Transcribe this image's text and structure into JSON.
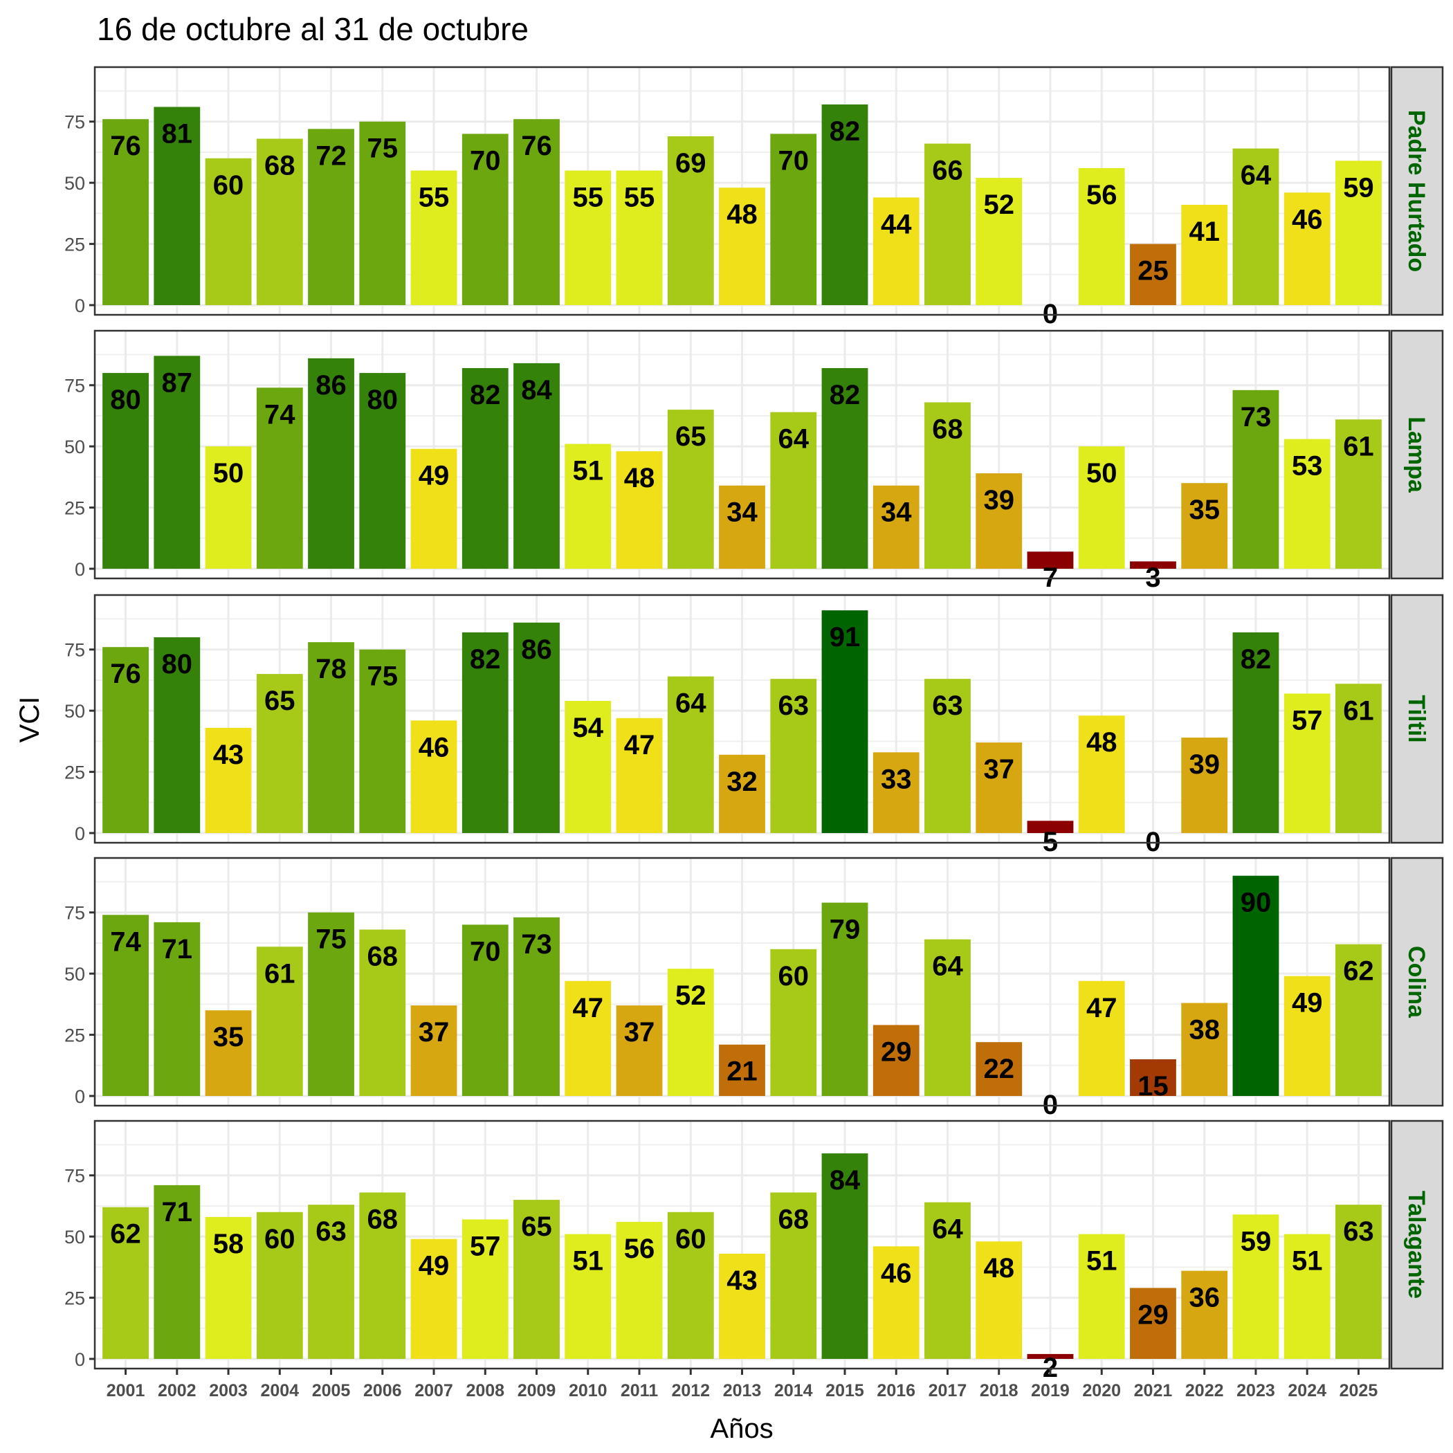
{
  "chart_data": {
    "type": "bar",
    "title": "16 de octubre al 31 de octubre",
    "xlabel": "Años",
    "ylabel": "VCI",
    "ylim": [
      0,
      95
    ],
    "yticks": [
      0,
      25,
      50,
      75
    ],
    "grid": true,
    "facet": "rows",
    "categories": [
      "2001",
      "2002",
      "2003",
      "2004",
      "2005",
      "2006",
      "2007",
      "2008",
      "2009",
      "2010",
      "2011",
      "2012",
      "2013",
      "2014",
      "2015",
      "2016",
      "2017",
      "2018",
      "2019",
      "2020",
      "2021",
      "2022",
      "2023",
      "2024",
      "2025"
    ],
    "series": [
      {
        "name": "Padre Hurtado",
        "values": [
          76,
          81,
          60,
          68,
          72,
          75,
          55,
          70,
          76,
          55,
          55,
          69,
          48,
          70,
          82,
          44,
          66,
          52,
          0,
          56,
          25,
          41,
          64,
          46,
          59
        ]
      },
      {
        "name": "Lampa",
        "values": [
          80,
          87,
          50,
          74,
          86,
          80,
          49,
          82,
          84,
          51,
          48,
          65,
          34,
          64,
          82,
          34,
          68,
          39,
          7,
          50,
          3,
          35,
          73,
          53,
          61
        ]
      },
      {
        "name": "Tiltil",
        "values": [
          76,
          80,
          43,
          65,
          78,
          75,
          46,
          82,
          86,
          54,
          47,
          64,
          32,
          63,
          91,
          33,
          63,
          37,
          5,
          48,
          0,
          39,
          82,
          57,
          61
        ]
      },
      {
        "name": "Colina",
        "values": [
          74,
          71,
          35,
          61,
          75,
          68,
          37,
          70,
          73,
          47,
          37,
          52,
          21,
          60,
          79,
          29,
          64,
          22,
          0,
          47,
          15,
          38,
          90,
          49,
          62
        ]
      },
      {
        "name": "Talagante",
        "values": [
          62,
          71,
          58,
          60,
          63,
          68,
          49,
          57,
          65,
          51,
          56,
          60,
          43,
          68,
          84,
          46,
          64,
          48,
          2,
          51,
          29,
          36,
          59,
          51,
          63
        ]
      }
    ],
    "color_scale": [
      {
        "min": 0,
        "max": 10,
        "color": "#8b0000"
      },
      {
        "min": 10,
        "max": 20,
        "color": "#a33a03"
      },
      {
        "min": 20,
        "max": 30,
        "color": "#bf6e09"
      },
      {
        "min": 30,
        "max": 40,
        "color": "#d6a710"
      },
      {
        "min": 40,
        "max": 50,
        "color": "#efe01a"
      },
      {
        "min": 50,
        "max": 60,
        "color": "#dfec1e"
      },
      {
        "min": 60,
        "max": 70,
        "color": "#a7c917"
      },
      {
        "min": 70,
        "max": 80,
        "color": "#6da70f"
      },
      {
        "min": 80,
        "max": 90,
        "color": "#35820a"
      },
      {
        "min": 90,
        "max": 101,
        "color": "#006400"
      }
    ],
    "strip_label_color": "#006400",
    "strip_background": "#d9d9d9"
  }
}
